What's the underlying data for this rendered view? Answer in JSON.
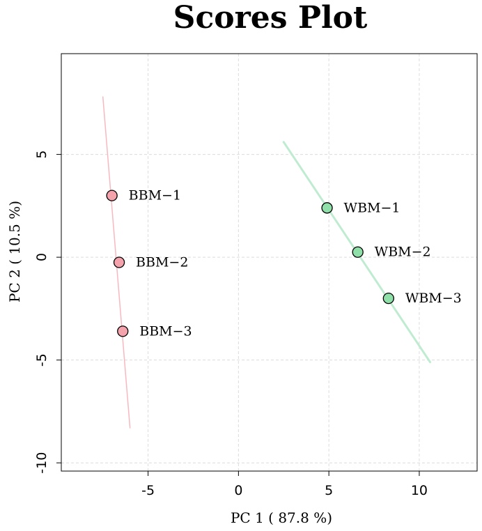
{
  "chart_data": {
    "type": "scatter",
    "title": "Scores Plot",
    "xlabel": "PC 1 ( 87.8 %)",
    "ylabel": "PC 2 ( 10.5 %)",
    "xlim": [
      -9.8,
      13.2
    ],
    "ylim": [
      -10.4,
      9.9
    ],
    "xticks": [
      -5,
      0,
      5,
      10
    ],
    "yticks": [
      -10,
      -5,
      0,
      5
    ],
    "xtick_labels": [
      "-5",
      "0",
      "5",
      "10"
    ],
    "ytick_labels": [
      "-10",
      "-5",
      "0",
      "5"
    ],
    "grid": true,
    "series": [
      {
        "color": "#f4a3ac",
        "line_color": "#f7b8c0",
        "points": [
          {
            "label": "BBM−1",
            "x": -7.0,
            "y": 3.0
          },
          {
            "label": "BBM−2",
            "x": -6.6,
            "y": -0.25
          },
          {
            "label": "BBM−3",
            "x": -6.4,
            "y": -3.6
          }
        ],
        "trend": [
          [
            -7.5,
            7.8
          ],
          [
            -6.0,
            -8.3
          ]
        ]
      },
      {
        "color": "#8ee0a8",
        "line_color": "#bfecd0",
        "points": [
          {
            "label": "WBM−1",
            "x": 4.9,
            "y": 2.4
          },
          {
            "label": "WBM−2",
            "x": 6.6,
            "y": 0.25
          },
          {
            "label": "WBM−3",
            "x": 8.3,
            "y": -2.0
          }
        ],
        "trend": [
          [
            2.5,
            5.6
          ],
          [
            10.6,
            -5.1
          ]
        ]
      }
    ]
  }
}
